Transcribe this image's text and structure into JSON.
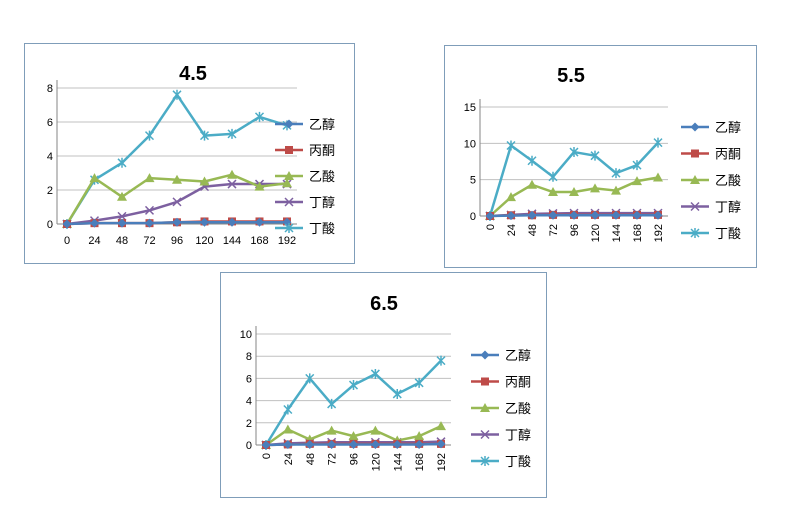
{
  "colors": {
    "乙醇": "#4a7ebb",
    "丙酮": "#be4b48",
    "乙酸": "#98b954",
    "丁醇": "#7d60a0",
    "丁酸": "#4bacc6",
    "grid": "#c0c0c0",
    "axis": "#868686"
  },
  "chart_data": [
    {
      "type": "line",
      "title": "4.5",
      "categories": [
        "0",
        "24",
        "48",
        "72",
        "96",
        "120",
        "144",
        "168",
        "192"
      ],
      "ylim": [
        0,
        8
      ],
      "yticks": [
        0,
        2,
        4,
        6,
        8
      ],
      "grid": true,
      "legend_position": "right",
      "series": [
        {
          "name": "乙醇",
          "marker": "diamond",
          "values": [
            0,
            0.05,
            0.05,
            0.05,
            0.1,
            0.1,
            0.1,
            0.1,
            0.1
          ]
        },
        {
          "name": "丙酮",
          "marker": "square",
          "values": [
            0,
            0.05,
            0.05,
            0.05,
            0.1,
            0.15,
            0.15,
            0.15,
            0.15
          ]
        },
        {
          "name": "乙酸",
          "marker": "triangle",
          "values": [
            0,
            2.7,
            1.6,
            2.7,
            2.6,
            2.5,
            2.9,
            2.2,
            2.4
          ]
        },
        {
          "name": "丁醇",
          "marker": "x",
          "values": [
            0,
            0.2,
            0.45,
            0.8,
            1.3,
            2.2,
            2.35,
            2.35,
            2.35
          ]
        },
        {
          "name": "丁酸",
          "marker": "star",
          "values": [
            0,
            2.6,
            3.6,
            5.2,
            7.6,
            5.2,
            5.3,
            6.3,
            5.8
          ]
        }
      ]
    },
    {
      "type": "line",
      "title": "5.5",
      "categories": [
        "0",
        "24",
        "48",
        "72",
        "96",
        "120",
        "144",
        "168",
        "192"
      ],
      "ylim": [
        0,
        15
      ],
      "yticks": [
        0,
        5,
        10,
        15
      ],
      "grid": true,
      "legend_position": "right",
      "series": [
        {
          "name": "乙醇",
          "marker": "diamond",
          "values": [
            0,
            0.05,
            0.1,
            0.1,
            0.1,
            0.1,
            0.1,
            0.1,
            0.1
          ]
        },
        {
          "name": "丙酮",
          "marker": "square",
          "values": [
            0,
            0.1,
            0.1,
            0.15,
            0.15,
            0.15,
            0.15,
            0.15,
            0.15
          ]
        },
        {
          "name": "乙酸",
          "marker": "triangle",
          "values": [
            0,
            2.6,
            4.3,
            3.3,
            3.3,
            3.8,
            3.5,
            4.8,
            5.3
          ]
        },
        {
          "name": "丁醇",
          "marker": "x",
          "values": [
            0,
            0.15,
            0.3,
            0.35,
            0.4,
            0.4,
            0.4,
            0.4,
            0.4
          ]
        },
        {
          "name": "丁酸",
          "marker": "star",
          "values": [
            0,
            9.7,
            7.6,
            5.4,
            8.8,
            8.3,
            5.9,
            7.0,
            10.1
          ]
        }
      ]
    },
    {
      "type": "line",
      "title": "6.5",
      "categories": [
        "0",
        "24",
        "48",
        "72",
        "96",
        "120",
        "144",
        "168",
        "192"
      ],
      "ylim": [
        0,
        10
      ],
      "yticks": [
        0,
        2,
        4,
        6,
        8,
        10
      ],
      "grid": true,
      "legend_position": "right",
      "series": [
        {
          "name": "乙醇",
          "marker": "diamond",
          "values": [
            0,
            0.05,
            0.05,
            0.05,
            0.05,
            0.05,
            0.05,
            0.05,
            0.1
          ]
        },
        {
          "name": "丙酮",
          "marker": "square",
          "values": [
            0,
            0.05,
            0.1,
            0.1,
            0.1,
            0.1,
            0.1,
            0.1,
            0.1
          ]
        },
        {
          "name": "乙酸",
          "marker": "triangle",
          "values": [
            0,
            1.4,
            0.5,
            1.3,
            0.8,
            1.3,
            0.4,
            0.8,
            1.7
          ]
        },
        {
          "name": "丁醇",
          "marker": "x",
          "values": [
            0,
            0.15,
            0.2,
            0.25,
            0.25,
            0.25,
            0.25,
            0.25,
            0.3
          ]
        },
        {
          "name": "丁酸",
          "marker": "star",
          "values": [
            0,
            3.2,
            6.0,
            3.7,
            5.4,
            6.4,
            4.6,
            5.6,
            7.6
          ]
        }
      ]
    }
  ]
}
